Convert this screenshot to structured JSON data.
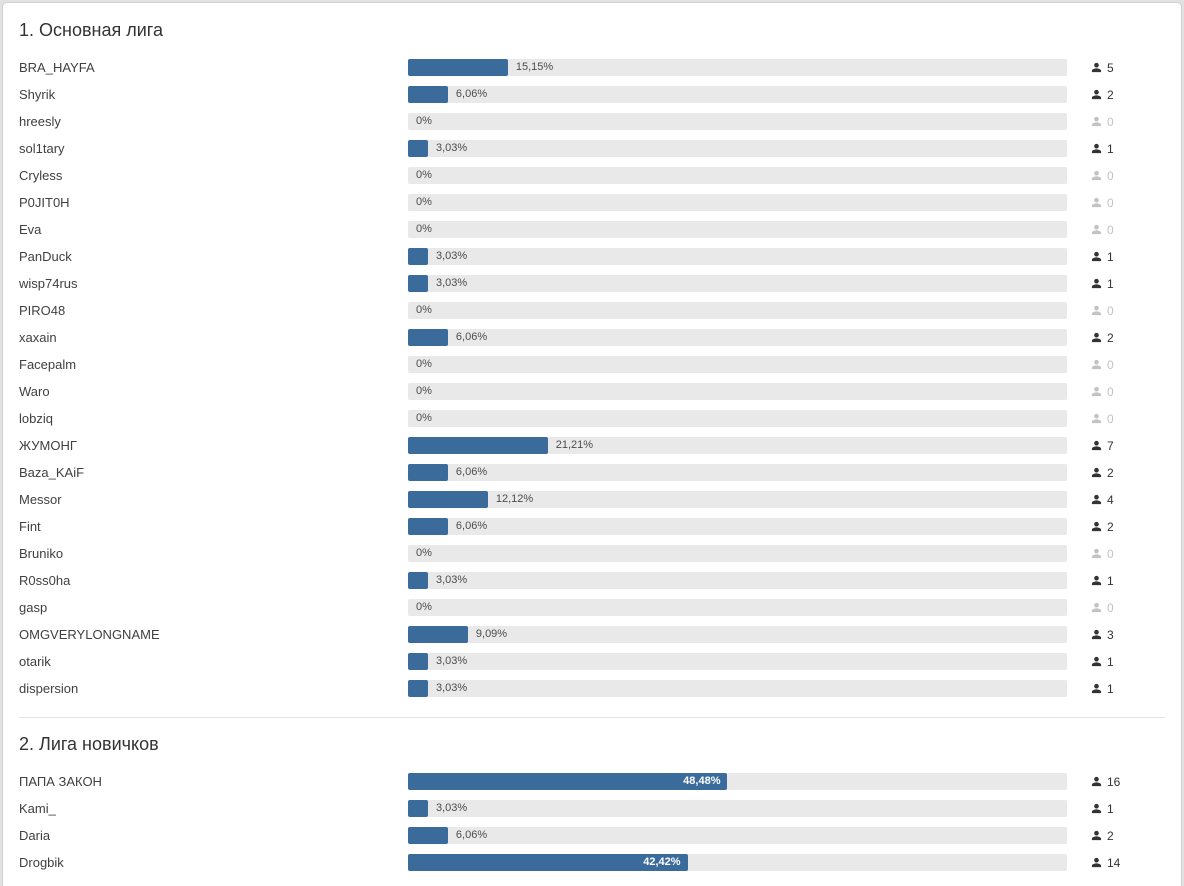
{
  "colors": {
    "page_bg": "#e1e1e1",
    "card_bg": "#ffffff",
    "card_border": "#d0d0d0",
    "divider": "#e2e2e2",
    "title_text": "#333333",
    "name_text": "#404040",
    "track": "#e9e9e9",
    "bar": "#3a6b9b",
    "pct_text": "#4c4c4c",
    "pct_text_inside": "#ffffff",
    "count_text": "#333333",
    "count_zero": "#c3c3c3"
  },
  "sections": [
    {
      "title": "1. Основная лига",
      "options": [
        {
          "name": "BRA_HAYFA",
          "percent": 15.15,
          "percent_label": "15,15%",
          "votes": 5
        },
        {
          "name": "Shyrik",
          "percent": 6.06,
          "percent_label": "6,06%",
          "votes": 2
        },
        {
          "name": "hreesly",
          "percent": 0,
          "percent_label": "0%",
          "votes": 0
        },
        {
          "name": "sol1tary",
          "percent": 3.03,
          "percent_label": "3,03%",
          "votes": 1
        },
        {
          "name": "Cryless",
          "percent": 0,
          "percent_label": "0%",
          "votes": 0
        },
        {
          "name": "P0JIT0H",
          "percent": 0,
          "percent_label": "0%",
          "votes": 0
        },
        {
          "name": "Eva",
          "percent": 0,
          "percent_label": "0%",
          "votes": 0
        },
        {
          "name": "PanDuck",
          "percent": 3.03,
          "percent_label": "3,03%",
          "votes": 1
        },
        {
          "name": "wisp74rus",
          "percent": 3.03,
          "percent_label": "3,03%",
          "votes": 1
        },
        {
          "name": "PIRO48",
          "percent": 0,
          "percent_label": "0%",
          "votes": 0
        },
        {
          "name": "xaxain",
          "percent": 6.06,
          "percent_label": "6,06%",
          "votes": 2
        },
        {
          "name": "Facepalm",
          "percent": 0,
          "percent_label": "0%",
          "votes": 0
        },
        {
          "name": "Waro",
          "percent": 0,
          "percent_label": "0%",
          "votes": 0
        },
        {
          "name": "lobziq",
          "percent": 0,
          "percent_label": "0%",
          "votes": 0
        },
        {
          "name": "ЖУМОНГ",
          "percent": 21.21,
          "percent_label": "21,21%",
          "votes": 7
        },
        {
          "name": "Baza_KAiF",
          "percent": 6.06,
          "percent_label": "6,06%",
          "votes": 2
        },
        {
          "name": "Messor",
          "percent": 12.12,
          "percent_label": "12,12%",
          "votes": 4
        },
        {
          "name": "Fint",
          "percent": 6.06,
          "percent_label": "6,06%",
          "votes": 2
        },
        {
          "name": "Bruniko",
          "percent": 0,
          "percent_label": "0%",
          "votes": 0
        },
        {
          "name": "R0ss0ha",
          "percent": 3.03,
          "percent_label": "3,03%",
          "votes": 1
        },
        {
          "name": "gasp",
          "percent": 0,
          "percent_label": "0%",
          "votes": 0
        },
        {
          "name": "OMGVERYLONGNAME",
          "percent": 9.09,
          "percent_label": "9,09%",
          "votes": 3
        },
        {
          "name": "otarik",
          "percent": 3.03,
          "percent_label": "3,03%",
          "votes": 1
        },
        {
          "name": "dispersion",
          "percent": 3.03,
          "percent_label": "3,03%",
          "votes": 1
        }
      ]
    },
    {
      "title": "2. Лига новичков",
      "options": [
        {
          "name": "ПАПА ЗАКОН",
          "percent": 48.48,
          "percent_label": "48,48%",
          "votes": 16
        },
        {
          "name": "Kami_",
          "percent": 3.03,
          "percent_label": "3,03%",
          "votes": 1
        },
        {
          "name": "Daria",
          "percent": 6.06,
          "percent_label": "6,06%",
          "votes": 2
        },
        {
          "name": "Drogbik",
          "percent": 42.42,
          "percent_label": "42,42%",
          "votes": 14
        }
      ]
    }
  ],
  "chart_data": [
    {
      "type": "bar",
      "title": "1. Основная лига",
      "categories": [
        "BRA_HAYFA",
        "Shyrik",
        "hreesly",
        "sol1tary",
        "Cryless",
        "P0JIT0H",
        "Eva",
        "PanDuck",
        "wisp74rus",
        "PIRO48",
        "xaxain",
        "Facepalm",
        "Waro",
        "lobziq",
        "ЖУМОНГ",
        "Baza_KAiF",
        "Messor",
        "Fint",
        "Bruniko",
        "R0ss0ha",
        "gasp",
        "OMGVERYLONGNAME",
        "otarik",
        "dispersion"
      ],
      "series": [
        {
          "name": "percent",
          "values": [
            15.15,
            6.06,
            0,
            3.03,
            0,
            0,
            0,
            3.03,
            3.03,
            0,
            6.06,
            0,
            0,
            0,
            21.21,
            6.06,
            12.12,
            6.06,
            0,
            3.03,
            0,
            9.09,
            3.03,
            3.03
          ]
        },
        {
          "name": "votes",
          "values": [
            5,
            2,
            0,
            1,
            0,
            0,
            0,
            1,
            1,
            0,
            2,
            0,
            0,
            0,
            7,
            2,
            4,
            2,
            0,
            1,
            0,
            3,
            1,
            1
          ]
        }
      ],
      "xlabel": "",
      "ylabel": "",
      "xlim": [
        0,
        100
      ],
      "grid": false,
      "orientation": "horizontal"
    },
    {
      "type": "bar",
      "title": "2. Лига новичков",
      "categories": [
        "ПАПА ЗАКОН",
        "Kami_",
        "Daria",
        "Drogbik"
      ],
      "series": [
        {
          "name": "percent",
          "values": [
            48.48,
            3.03,
            6.06,
            42.42
          ]
        },
        {
          "name": "votes",
          "values": [
            16,
            1,
            2,
            14
          ]
        }
      ],
      "xlabel": "",
      "ylabel": "",
      "xlim": [
        0,
        100
      ],
      "grid": false,
      "orientation": "horizontal"
    }
  ]
}
